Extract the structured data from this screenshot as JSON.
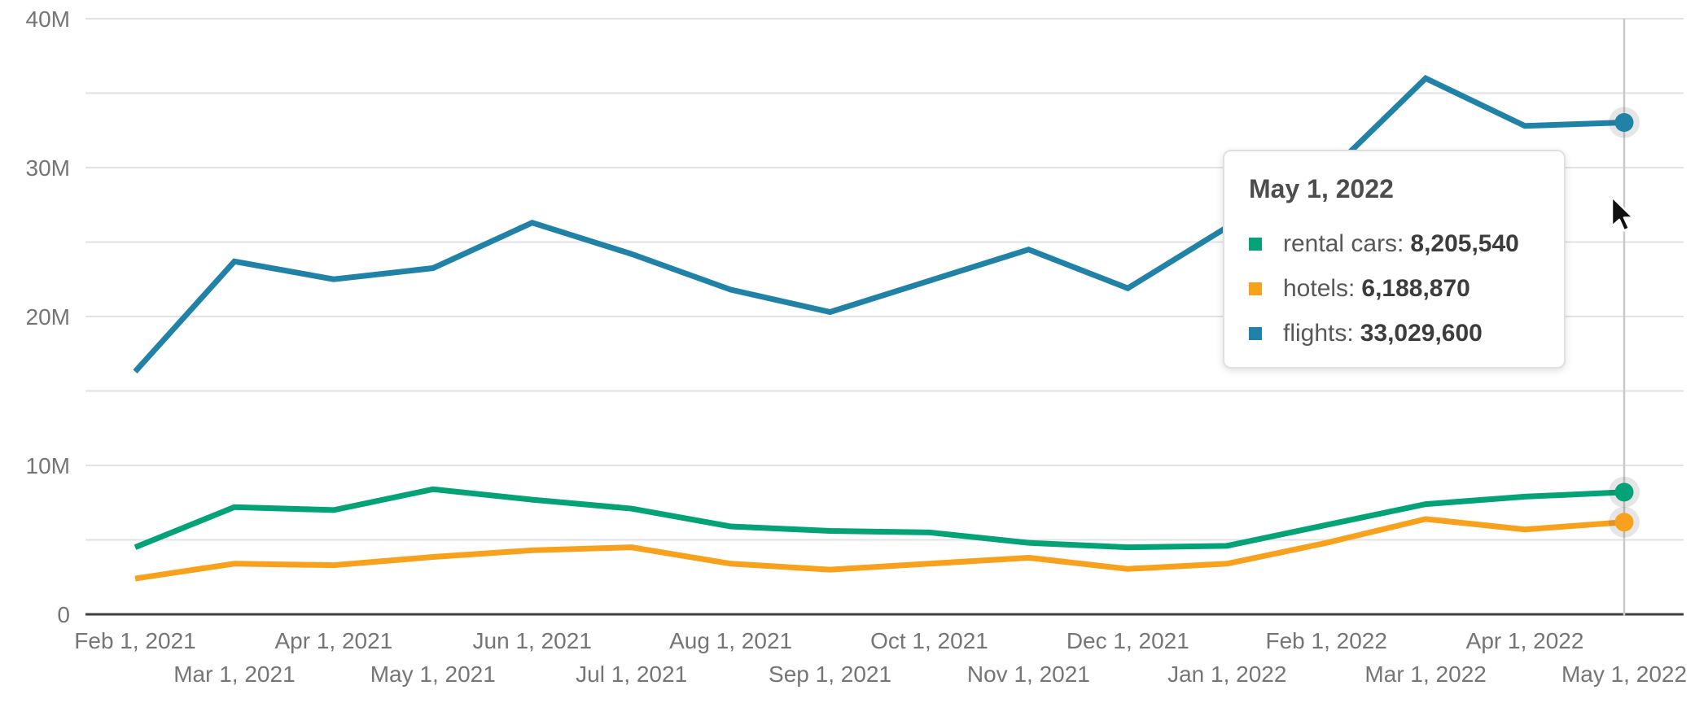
{
  "chart_data": {
    "type": "line",
    "title": "",
    "xlabel": "",
    "ylabel": "",
    "x": [
      "Feb 1, 2021",
      "Mar 1, 2021",
      "Apr 1, 2021",
      "May 1, 2021",
      "Jun 1, 2021",
      "Jul 1, 2021",
      "Aug 1, 2021",
      "Sep 1, 2021",
      "Oct 1, 2021",
      "Nov 1, 2021",
      "Dec 1, 2021",
      "Jan 1, 2022",
      "Feb 1, 2022",
      "Mar 1, 2022",
      "Apr 1, 2022",
      "May 1, 2022"
    ],
    "series": [
      {
        "name": "rental cars",
        "color": "#03a377",
        "values": [
          4500000,
          7200000,
          7000000,
          8400000,
          7700000,
          7100000,
          5900000,
          5600000,
          5500000,
          4800000,
          4500000,
          4600000,
          6000000,
          7400000,
          7900000,
          8205540
        ]
      },
      {
        "name": "hotels",
        "color": "#f7a11c",
        "values": [
          2400000,
          3400000,
          3300000,
          3850000,
          4300000,
          4500000,
          3400000,
          3000000,
          3400000,
          3800000,
          3050000,
          3400000,
          4800000,
          6400000,
          5700000,
          6188870
        ]
      },
      {
        "name": "flights",
        "color": "#2182a8",
        "values": [
          16300000,
          23700000,
          22500000,
          23250000,
          26300000,
          24200000,
          21800000,
          20300000,
          22400000,
          24500000,
          21900000,
          26000000,
          29500000,
          36000000,
          32800000,
          33029600
        ]
      }
    ],
    "ylim": [
      0,
      40000000
    ],
    "y_grid_step": 5000000,
    "y_label_ticks": [
      {
        "value": 0,
        "label": "0"
      },
      {
        "value": 10000000,
        "label": "10M"
      },
      {
        "value": 20000000,
        "label": "20M"
      },
      {
        "value": 30000000,
        "label": "30M"
      },
      {
        "value": 40000000,
        "label": "40M"
      }
    ],
    "grid": true,
    "legend_position": "tooltip",
    "highlighted_index": 15,
    "highlighted_x": "May 1, 2022"
  },
  "tooltip": {
    "title": "May 1, 2022",
    "items": [
      {
        "label": "rental cars",
        "value": "8,205,540",
        "color": "#03a377"
      },
      {
        "label": "hotels",
        "value": "6,188,870",
        "color": "#f7a11c"
      },
      {
        "label": "flights",
        "value": "33,029,600",
        "color": "#2182a8"
      }
    ]
  },
  "colors": {
    "grid_line": "#e2e2e2",
    "axis_baseline": "#3f3f3f",
    "axis_text": "#757575",
    "crosshair": "#c9c9c9",
    "dot_halo": "rgba(80,80,80,0.14)"
  }
}
